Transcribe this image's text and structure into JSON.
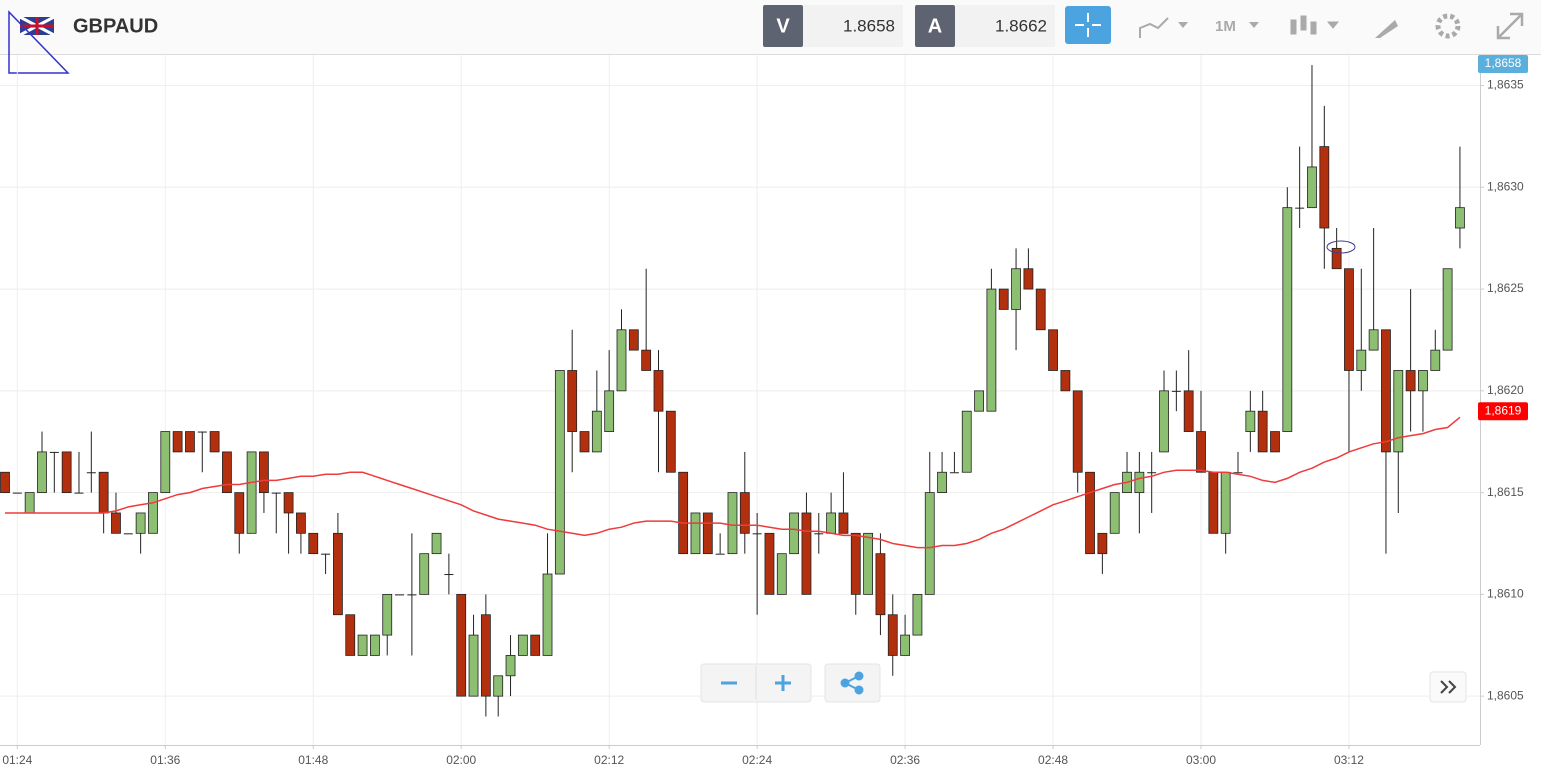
{
  "header": {
    "symbol": "GBPAUD",
    "bid_label": "V",
    "bid": 1.8658,
    "ask_label": "A",
    "ask": 1.8662,
    "timeframe": "1M"
  },
  "chart_data": {
    "type": "candlestick",
    "categories": [
      null,
      "01:24",
      null,
      null,
      null,
      null,
      null,
      null,
      null,
      null,
      null,
      null,
      null,
      "01:36",
      null,
      null,
      null,
      null,
      null,
      null,
      null,
      null,
      null,
      null,
      null,
      "01:48",
      null,
      null,
      null,
      null,
      null,
      null,
      null,
      null,
      null,
      null,
      null,
      "02:00",
      null,
      null,
      null,
      null,
      null,
      null,
      null,
      null,
      null,
      null,
      null,
      "02:12",
      null,
      null,
      null,
      null,
      null,
      null,
      null,
      null,
      null,
      null,
      null,
      "02:24",
      null,
      null,
      null,
      null,
      null,
      null,
      null,
      null,
      null,
      null,
      null,
      "02:36",
      null,
      null,
      null,
      null,
      null,
      null,
      null,
      null,
      null,
      null,
      null,
      "02:48",
      null,
      null,
      null,
      null,
      null,
      null,
      null,
      null,
      null,
      null,
      null,
      "03:00",
      null,
      null,
      null,
      null,
      null,
      null,
      null,
      null,
      null,
      null,
      null,
      "03:12",
      null,
      null,
      null,
      null,
      null,
      null,
      null,
      null,
      null
    ],
    "open": [
      1.8616,
      1.8615,
      1.8614,
      1.8615,
      1.8617,
      1.8617,
      1.8615,
      1.8616,
      1.8616,
      1.8614,
      1.8613,
      1.8613,
      1.8613,
      1.8615,
      1.8618,
      1.8618,
      1.8618,
      1.8618,
      1.8617,
      1.8615,
      1.8613,
      1.8617,
      1.8615,
      1.8615,
      1.8614,
      1.8613,
      1.8612,
      1.8613,
      1.8609,
      1.8607,
      1.8607,
      1.8608,
      1.861,
      1.861,
      1.861,
      1.8612,
      1.8611,
      1.861,
      1.8605,
      1.8609,
      1.8605,
      1.8606,
      1.8607,
      1.8608,
      1.8607,
      1.8611,
      1.8621,
      1.8618,
      1.8617,
      1.8618,
      1.862,
      1.8623,
      1.8622,
      1.8621,
      1.8619,
      1.8616,
      1.8612,
      1.8614,
      1.8612,
      1.8612,
      1.8615,
      1.8613,
      1.8613,
      1.861,
      1.8612,
      1.8614,
      1.8613,
      1.8613,
      1.8614,
      1.8613,
      1.861,
      1.8612,
      1.8609,
      1.8607,
      1.8608,
      1.861,
      1.8615,
      1.8616,
      1.8616,
      1.8619,
      1.8619,
      1.8625,
      1.8624,
      1.8626,
      1.8625,
      1.8623,
      1.8621,
      1.862,
      1.8616,
      1.8613,
      1.8613,
      1.8615,
      1.8615,
      1.8616,
      1.8617,
      1.862,
      1.862,
      1.8618,
      1.8616,
      1.8613,
      1.8616,
      1.8618,
      1.8619,
      1.8618,
      1.8618,
      1.8629,
      1.8629,
      1.8632,
      1.8627,
      1.8626,
      1.8621,
      1.8622,
      1.8623,
      1.8617,
      1.8621,
      1.862,
      1.8621,
      1.8622,
      1.8628
    ],
    "high": [
      1.8616,
      1.8615,
      1.8615,
      1.8618,
      1.8617,
      1.8617,
      1.8617,
      1.8618,
      1.8616,
      1.8615,
      1.8613,
      1.8614,
      1.8615,
      1.8618,
      1.8618,
      1.8618,
      1.8618,
      1.8618,
      1.8617,
      1.8615,
      1.8617,
      1.8617,
      1.8615,
      1.8615,
      1.8614,
      1.8613,
      1.8612,
      1.8614,
      1.8609,
      1.8608,
      1.8608,
      1.861,
      1.861,
      1.8613,
      1.8612,
      1.8613,
      1.8612,
      1.861,
      1.8609,
      1.861,
      1.8606,
      1.8608,
      1.8608,
      1.8608,
      1.8613,
      1.8621,
      1.8623,
      1.8618,
      1.8621,
      1.8622,
      1.8624,
      1.8623,
      1.8626,
      1.8622,
      1.8619,
      1.8616,
      1.8614,
      1.8614,
      1.8613,
      1.8615,
      1.8617,
      1.8614,
      1.8613,
      1.8612,
      1.8614,
      1.8615,
      1.8614,
      1.8615,
      1.8616,
      1.8613,
      1.8613,
      1.8613,
      1.861,
      1.8609,
      1.861,
      1.8617,
      1.8617,
      1.8617,
      1.8619,
      1.862,
      1.8626,
      1.8625,
      1.8627,
      1.8627,
      1.8625,
      1.8623,
      1.8621,
      1.862,
      1.8616,
      1.8613,
      1.8615,
      1.8617,
      1.8617,
      1.8617,
      1.8621,
      1.8621,
      1.8622,
      1.862,
      1.8616,
      1.8616,
      1.8617,
      1.862,
      1.862,
      1.8618,
      1.863,
      1.8632,
      1.8636,
      1.8634,
      1.8628,
      1.8626,
      1.8626,
      1.8628,
      1.8623,
      1.8621,
      1.8625,
      1.8621,
      1.8623,
      1.8626,
      1.8632
    ],
    "low": [
      1.8615,
      1.8615,
      1.8614,
      1.8615,
      1.8615,
      1.8615,
      1.8615,
      1.8615,
      1.8613,
      1.8613,
      1.8613,
      1.8612,
      1.8613,
      1.8615,
      1.8617,
      1.8617,
      1.8616,
      1.8617,
      1.8615,
      1.8612,
      1.8613,
      1.8614,
      1.8613,
      1.8612,
      1.8612,
      1.8612,
      1.8611,
      1.8609,
      1.8607,
      1.8607,
      1.8607,
      1.8607,
      1.861,
      1.8607,
      1.861,
      1.8612,
      1.861,
      1.8605,
      1.8605,
      1.8604,
      1.8604,
      1.8605,
      1.8607,
      1.8607,
      1.8607,
      1.8611,
      1.8616,
      1.8617,
      1.8617,
      1.8618,
      1.862,
      1.8622,
      1.8621,
      1.8616,
      1.8616,
      1.8612,
      1.8612,
      1.8612,
      1.8612,
      1.8612,
      1.8612,
      1.8609,
      1.861,
      1.861,
      1.8612,
      1.861,
      1.8612,
      1.8613,
      1.8613,
      1.8609,
      1.861,
      1.8608,
      1.8606,
      1.8607,
      1.8608,
      1.861,
      1.8615,
      1.8616,
      1.8616,
      1.8619,
      1.8619,
      1.8624,
      1.8622,
      1.8625,
      1.8623,
      1.8621,
      1.862,
      1.8615,
      1.8612,
      1.8611,
      1.8613,
      1.8615,
      1.8613,
      1.8614,
      1.8617,
      1.8619,
      1.8618,
      1.8616,
      1.8613,
      1.8612,
      1.8616,
      1.8617,
      1.8617,
      1.8617,
      1.8618,
      1.8628,
      1.8629,
      1.8626,
      1.8626,
      1.8617,
      1.862,
      1.8622,
      1.8612,
      1.8614,
      1.8618,
      1.8618,
      1.8621,
      1.8622,
      1.8627
    ],
    "close": [
      1.8615,
      1.8615,
      1.8615,
      1.8617,
      1.8617,
      1.8615,
      1.8615,
      1.8616,
      1.8614,
      1.8613,
      1.8613,
      1.8614,
      1.8615,
      1.8618,
      1.8617,
      1.8617,
      1.8618,
      1.8617,
      1.8615,
      1.8613,
      1.8617,
      1.8615,
      1.8615,
      1.8614,
      1.8613,
      1.8612,
      1.8612,
      1.8609,
      1.8607,
      1.8608,
      1.8608,
      1.861,
      1.861,
      1.861,
      1.8612,
      1.8613,
      1.8611,
      1.8605,
      1.8608,
      1.8605,
      1.8606,
      1.8607,
      1.8608,
      1.8607,
      1.8611,
      1.8621,
      1.8618,
      1.8617,
      1.8619,
      1.862,
      1.8623,
      1.8622,
      1.8621,
      1.8619,
      1.8616,
      1.8612,
      1.8614,
      1.8612,
      1.8612,
      1.8615,
      1.8613,
      1.8613,
      1.861,
      1.8612,
      1.8614,
      1.861,
      1.8613,
      1.8614,
      1.8613,
      1.861,
      1.8613,
      1.8609,
      1.8607,
      1.8608,
      1.861,
      1.8615,
      1.8616,
      1.8616,
      1.8619,
      1.862,
      1.8625,
      1.8624,
      1.8626,
      1.8625,
      1.8623,
      1.8621,
      1.862,
      1.8616,
      1.8612,
      1.8612,
      1.8615,
      1.8616,
      1.8616,
      1.8616,
      1.862,
      1.862,
      1.8618,
      1.8616,
      1.8613,
      1.8616,
      1.8616,
      1.8619,
      1.8617,
      1.8617,
      1.8629,
      1.8629,
      1.8631,
      1.8628,
      1.8626,
      1.8621,
      1.8622,
      1.8623,
      1.8617,
      1.8621,
      1.862,
      1.8621,
      1.8622,
      1.8626,
      1.8629
    ],
    "up_color": "#8dbf72",
    "down_color": "#b3300f",
    "moving_average": {
      "color": "#ee3b3b",
      "values": [
        1.8614,
        1.8614,
        1.8614,
        1.8614,
        1.8614,
        1.8614,
        1.8614,
        1.8614,
        1.8614,
        1.86141,
        1.86143,
        1.86144,
        1.86145,
        1.86147,
        1.86149,
        1.8615,
        1.86152,
        1.86153,
        1.86154,
        1.86154,
        1.86155,
        1.86156,
        1.86156,
        1.86157,
        1.86158,
        1.86158,
        1.86159,
        1.86159,
        1.8616,
        1.8616,
        1.86158,
        1.86156,
        1.86154,
        1.86152,
        1.8615,
        1.86148,
        1.86146,
        1.86144,
        1.86141,
        1.86139,
        1.86137,
        1.86136,
        1.86135,
        1.86134,
        1.86132,
        1.86131,
        1.8613,
        1.86129,
        1.8613,
        1.86132,
        1.86133,
        1.86135,
        1.86136,
        1.86136,
        1.86136,
        1.86135,
        1.86135,
        1.86135,
        1.86135,
        1.86134,
        1.86134,
        1.86134,
        1.86133,
        1.86132,
        1.86132,
        1.86131,
        1.86131,
        1.8613,
        1.86129,
        1.86129,
        1.86128,
        1.86127,
        1.86125,
        1.86124,
        1.86123,
        1.86123,
        1.86124,
        1.86124,
        1.86125,
        1.86127,
        1.8613,
        1.86132,
        1.86135,
        1.86138,
        1.86141,
        1.86144,
        1.86146,
        1.86148,
        1.8615,
        1.86152,
        1.86154,
        1.86155,
        1.86157,
        1.86158,
        1.8616,
        1.86161,
        1.86161,
        1.86161,
        1.8616,
        1.8616,
        1.86159,
        1.86158,
        1.86156,
        1.86155,
        1.86157,
        1.8616,
        1.86162,
        1.86165,
        1.86167,
        1.8617,
        1.86172,
        1.86174,
        1.86175,
        1.86177,
        1.86178,
        1.86179,
        1.86181,
        1.86182,
        1.86187
      ]
    },
    "price_tags": [
      {
        "value": 1.8658,
        "label": "1,8658",
        "color": "#5aafdc"
      },
      {
        "value": 1.8619,
        "label": "1,8619",
        "color": "#ff0000"
      }
    ],
    "ylim": [
      1.86026,
      1.86365
    ],
    "yticks": [
      {
        "value": 1.8605,
        "label": "1,8605"
      },
      {
        "value": 1.861,
        "label": "1,8610"
      },
      {
        "value": 1.8615,
        "label": "1,8615"
      },
      {
        "value": 1.862,
        "label": "1,8620"
      },
      {
        "value": 1.8625,
        "label": "1,8625"
      },
      {
        "value": 1.863,
        "label": "1,8630"
      },
      {
        "value": 1.8635,
        "label": "1,8635"
      }
    ],
    "grid": true
  }
}
